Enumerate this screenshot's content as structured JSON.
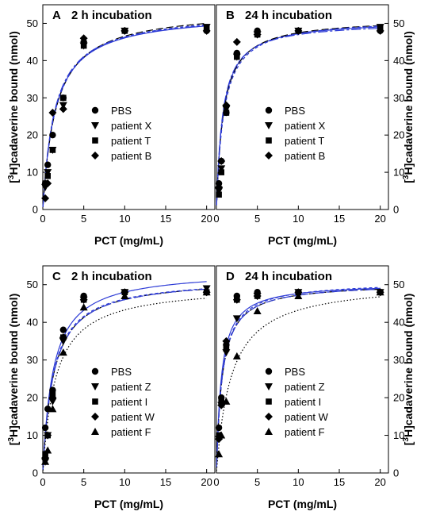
{
  "chart_data": [
    {
      "type": "scatter",
      "panel": "A",
      "title": "2 h incubation",
      "xlabel": "PCT (mg/mL)",
      "ylabel_parts": [
        "[",
        "3",
        "H]cadaverine bound (nmol)"
      ],
      "xlim": [
        0,
        21
      ],
      "ylim": [
        0,
        55
      ],
      "xticks": [
        0,
        5,
        10,
        15,
        20
      ],
      "yticks": [
        0,
        10,
        20,
        30,
        40,
        50
      ],
      "grid": false,
      "legend_position": "center",
      "x": [
        0.3,
        0.6,
        1.2,
        2.5,
        5,
        10,
        20
      ],
      "series": [
        {
          "name": "PBS",
          "marker": "circle",
          "values": [
            7,
            12,
            20,
            30,
            45,
            48,
            48
          ],
          "fit": {
            "vmax": 53,
            "k": 1.5
          }
        },
        {
          "name": "patient X",
          "marker": "triangle-down",
          "values": [
            6,
            10,
            16,
            28,
            44,
            48,
            49
          ],
          "fit": {
            "vmax": 54,
            "k": 1.6
          }
        },
        {
          "name": "patient T",
          "marker": "square",
          "values": [
            7,
            9,
            16,
            30,
            44,
            48,
            49
          ],
          "fit": {
            "vmax": 53.5,
            "k": 1.55
          }
        },
        {
          "name": "patient B",
          "marker": "diamond",
          "values": [
            3,
            7,
            26,
            27,
            46,
            48,
            48
          ],
          "fit": {
            "vmax": 53,
            "k": 1.45
          }
        }
      ]
    },
    {
      "type": "scatter",
      "panel": "B",
      "title": "24 h incubation",
      "xlabel": "PCT (mg/mL)",
      "ylabel_parts": [
        "[",
        "3",
        "H]cadaverine bound (nmol)"
      ],
      "xlim": [
        0,
        21
      ],
      "ylim": [
        0,
        55
      ],
      "xticks": [
        0,
        5,
        10,
        15,
        20
      ],
      "yticks": [
        0,
        10,
        20,
        30,
        40,
        50
      ],
      "grid": false,
      "legend_position": "center",
      "x": [
        0.3,
        0.6,
        1.2,
        2.5,
        5,
        10,
        20
      ],
      "series": [
        {
          "name": "PBS",
          "marker": "circle",
          "values": [
            7,
            13,
            26,
            42,
            48,
            48,
            48
          ],
          "fit": {
            "vmax": 51,
            "k": 0.8
          }
        },
        {
          "name": "patient X",
          "marker": "triangle-down",
          "values": [
            5,
            11,
            27,
            41,
            47,
            48,
            49
          ],
          "fit": {
            "vmax": 51.5,
            "k": 0.85
          }
        },
        {
          "name": "patient T",
          "marker": "square",
          "values": [
            4,
            10,
            26,
            41,
            47,
            48,
            49
          ],
          "fit": {
            "vmax": 51.5,
            "k": 0.9
          }
        },
        {
          "name": "patient B",
          "marker": "diamond",
          "values": [
            6,
            13,
            28,
            45,
            47,
            48,
            48
          ],
          "fit": {
            "vmax": 50.5,
            "k": 0.75
          }
        }
      ]
    },
    {
      "type": "scatter",
      "panel": "C",
      "title": "2 h incubation",
      "xlabel": "PCT (mg/mL)",
      "ylabel_parts": [
        "[",
        "3",
        "H]cadaverine bound (nmol)"
      ],
      "xlim": [
        0,
        21
      ],
      "ylim": [
        0,
        55
      ],
      "xticks": [
        0,
        5,
        10,
        15,
        20
      ],
      "yticks": [
        0,
        10,
        20,
        30,
        40,
        50
      ],
      "grid": false,
      "legend_position": "center",
      "x": [
        0.3,
        0.6,
        1.2,
        2.5,
        5,
        10,
        20
      ],
      "series": [
        {
          "name": "PBS",
          "marker": "circle",
          "values": [
            12,
            17,
            22,
            38,
            47,
            48,
            48
          ],
          "fit": {
            "vmax": 54,
            "k": 1.25
          }
        },
        {
          "name": "patient Z",
          "marker": "triangle-down",
          "values": [
            3,
            10,
            19,
            35,
            46,
            48,
            49
          ],
          "fit": {
            "vmax": 52,
            "k": 1.3
          }
        },
        {
          "name": "patient I",
          "marker": "square",
          "values": [
            5,
            10,
            21,
            36,
            46,
            48,
            48
          ],
          "fit": {
            "vmax": 52,
            "k": 1.25
          }
        },
        {
          "name": "patient W",
          "marker": "diamond",
          "values": [
            4,
            10,
            20,
            36,
            46,
            48,
            48
          ],
          "fit": {
            "vmax": 52,
            "k": 1.3
          }
        },
        {
          "name": "patient F",
          "marker": "triangle-up",
          "values": [
            3,
            6,
            17,
            32,
            44,
            47,
            48
          ],
          "fit": {
            "vmax": 50,
            "k": 1.55
          }
        }
      ]
    },
    {
      "type": "scatter",
      "panel": "D",
      "title": "24 h incubation",
      "xlabel": "PCT (mg/mL)",
      "ylabel_parts": [
        "[",
        "3",
        "H]cadaverine bound (nmol)"
      ],
      "xlim": [
        0,
        21
      ],
      "ylim": [
        0,
        55
      ],
      "xticks": [
        0,
        5,
        10,
        15,
        20
      ],
      "yticks": [
        0,
        10,
        20,
        30,
        40,
        50
      ],
      "grid": false,
      "legend_position": "center",
      "x": [
        0.3,
        0.6,
        1.2,
        2.5,
        5,
        10,
        20
      ],
      "series": [
        {
          "name": "PBS",
          "marker": "circle",
          "values": [
            12,
            20,
            34,
            47,
            48,
            48,
            48
          ],
          "fit": {
            "vmax": 50.5,
            "k": 0.6
          }
        },
        {
          "name": "patient Z",
          "marker": "triangle-down",
          "values": [
            9,
            18,
            32,
            41,
            47,
            48,
            48
          ],
          "fit": {
            "vmax": 50.5,
            "k": 0.7
          }
        },
        {
          "name": "patient I",
          "marker": "square",
          "values": [
            10,
            19,
            33,
            46,
            47,
            48,
            48
          ],
          "fit": {
            "vmax": 51,
            "k": 0.7
          }
        },
        {
          "name": "patient W",
          "marker": "diamond",
          "values": [
            9,
            18,
            35,
            46,
            47,
            48,
            48
          ],
          "fit": {
            "vmax": 50.5,
            "k": 0.7
          }
        },
        {
          "name": "patient F",
          "marker": "triangle-up",
          "values": [
            5,
            10,
            19,
            31,
            43,
            47,
            48
          ],
          "fit": {
            "vmax": 51,
            "k": 1.8
          }
        }
      ]
    }
  ],
  "styles": {
    "fit_color": "#2d3bd6",
    "fit_dark": "#000000",
    "marker_color": "#000000"
  }
}
